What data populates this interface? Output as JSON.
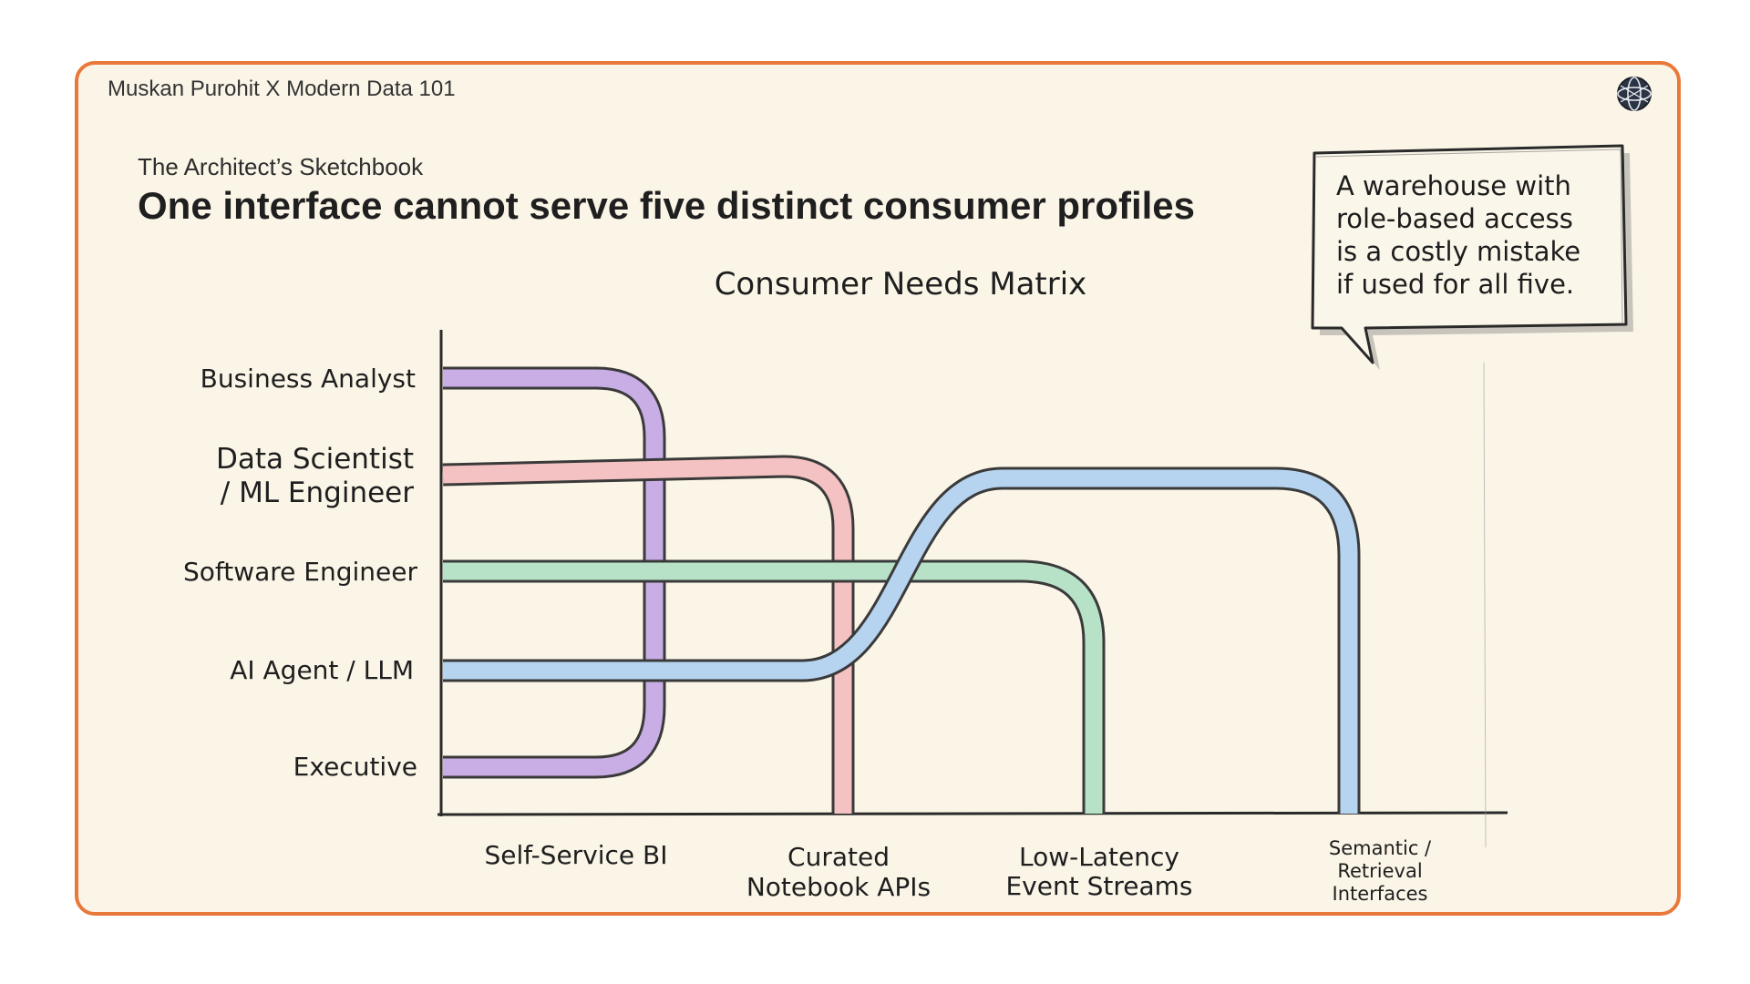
{
  "header": {
    "brand": "Muskan Purohit X Modern Data 101",
    "logo_icon": "globe-icon"
  },
  "slide": {
    "eyebrow": "The Architect’s Sketchbook",
    "title": "One interface cannot serve five distinct consumer profiles"
  },
  "callout": {
    "lines": [
      "A warehouse with",
      "role-based access",
      "is a costly mistake",
      "if used for all five."
    ]
  },
  "diagram": {
    "title": "Consumer Needs Matrix",
    "consumers": [
      {
        "lines": [
          "Business Analyst"
        ]
      },
      {
        "lines": [
          "Data Scientist",
          "/ ML Engineer"
        ]
      },
      {
        "lines": [
          "Software Engineer"
        ]
      },
      {
        "lines": [
          "AI Agent / LLM"
        ]
      },
      {
        "lines": [
          "Executive"
        ]
      }
    ],
    "interfaces": [
      {
        "lines": [
          "Self-Service BI"
        ]
      },
      {
        "lines": [
          "Curated",
          "Notebook APIs"
        ]
      },
      {
        "lines": [
          "Low-Latency",
          "Event Streams"
        ]
      },
      {
        "lines": [
          "Semantic /",
          "Retrieval",
          "Interfaces"
        ]
      }
    ],
    "pipes": [
      {
        "from": [
          "Business Analyst",
          "Executive"
        ],
        "to": "Self-Service BI",
        "color": "#c9aee6"
      },
      {
        "from": [
          "Data Scientist / ML Engineer"
        ],
        "to": "Curated Notebook APIs",
        "color": "#f5c2c4"
      },
      {
        "from": [
          "Software Engineer"
        ],
        "to": "Low-Latency Event Streams",
        "color": "#b7e2c8"
      },
      {
        "from": [
          "AI Agent / LLM"
        ],
        "to": "Semantic / Retrieval Interfaces",
        "color": "#b6d3ef"
      }
    ]
  }
}
